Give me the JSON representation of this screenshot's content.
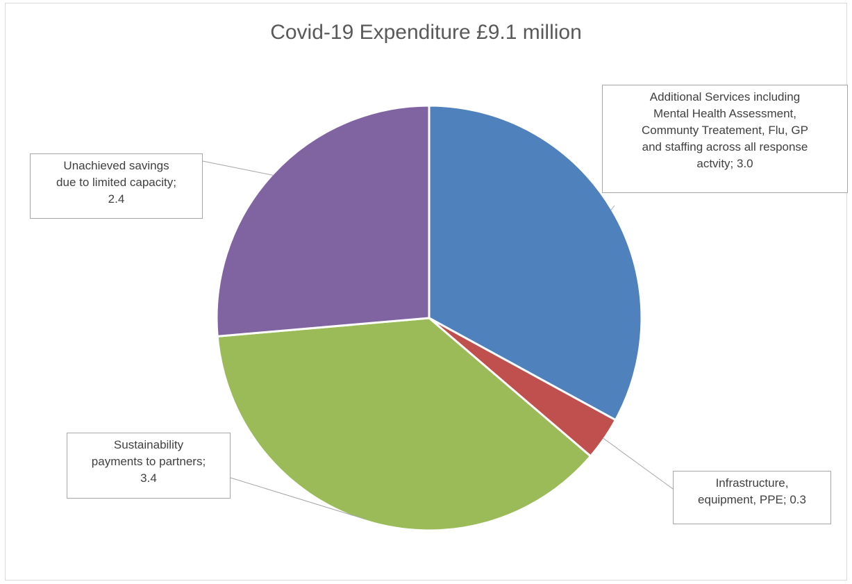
{
  "chart_data": {
    "type": "pie",
    "title": "Covid-19 Expenditure £9.1 million",
    "slices": [
      {
        "label_lines": [
          "Additional Services including",
          "Mental Health Assessment,",
          "Communty Treatement, Flu, GP",
          "and staffing across all response",
          "actvity;  3.0"
        ],
        "value": 3.0,
        "color": "#4f81bd"
      },
      {
        "label_lines": [
          "Infrastructure,",
          "equipment, PPE;  0.3"
        ],
        "value": 0.3,
        "color": "#c0504d"
      },
      {
        "label_lines": [
          "Sustainability",
          "payments to partners;",
          "3.4"
        ],
        "value": 3.4,
        "color": "#9bbb59"
      },
      {
        "label_lines": [
          "Unachieved savings",
          "due to limited capacity;",
          "2.4"
        ],
        "value": 2.4,
        "color": "#8064a2"
      }
    ]
  }
}
